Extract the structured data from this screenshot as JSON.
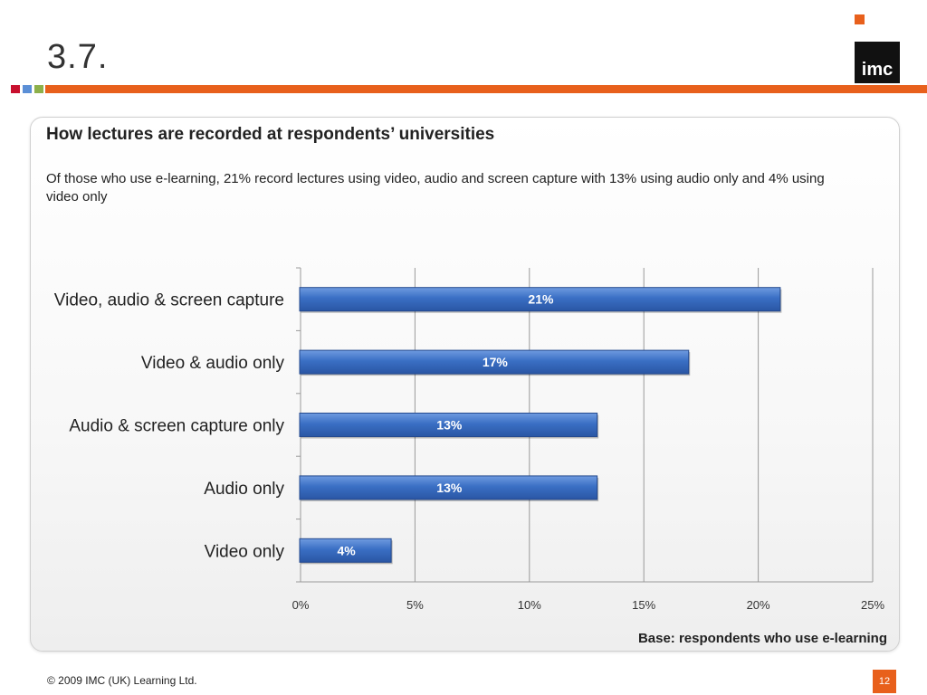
{
  "slide": {
    "heading": "3.7.",
    "logo_text": "imc",
    "accent_squares": [
      "#c8102e",
      "#5b8fd6",
      "#8db04a"
    ],
    "accent_color": "#e8601c"
  },
  "panel": {
    "title": "How lectures are recorded at respondents’ universities",
    "subtitle": "Of those who use e-learning, 21% record lectures using video, audio and screen capture with 13% using audio only and 4% using video only",
    "base_note": "Base: respondents who use e-learning"
  },
  "footer": {
    "copyright": "© 2009 IMC (UK) Learning Ltd.",
    "page_number": "12"
  },
  "chart_data": {
    "type": "bar",
    "orientation": "horizontal",
    "categories": [
      "Video, audio & screen capture",
      "Video & audio only",
      "Audio & screen capture only",
      "Audio only",
      "Video only"
    ],
    "values": [
      21,
      17,
      13,
      13,
      4
    ],
    "data_labels": [
      "21%",
      "17%",
      "13%",
      "13%",
      "4%"
    ],
    "xticks": [
      "0%",
      "5%",
      "10%",
      "15%",
      "20%",
      "25%"
    ],
    "xlim": [
      0,
      25
    ],
    "grid": true,
    "bar_color": "#3a6fc4"
  }
}
